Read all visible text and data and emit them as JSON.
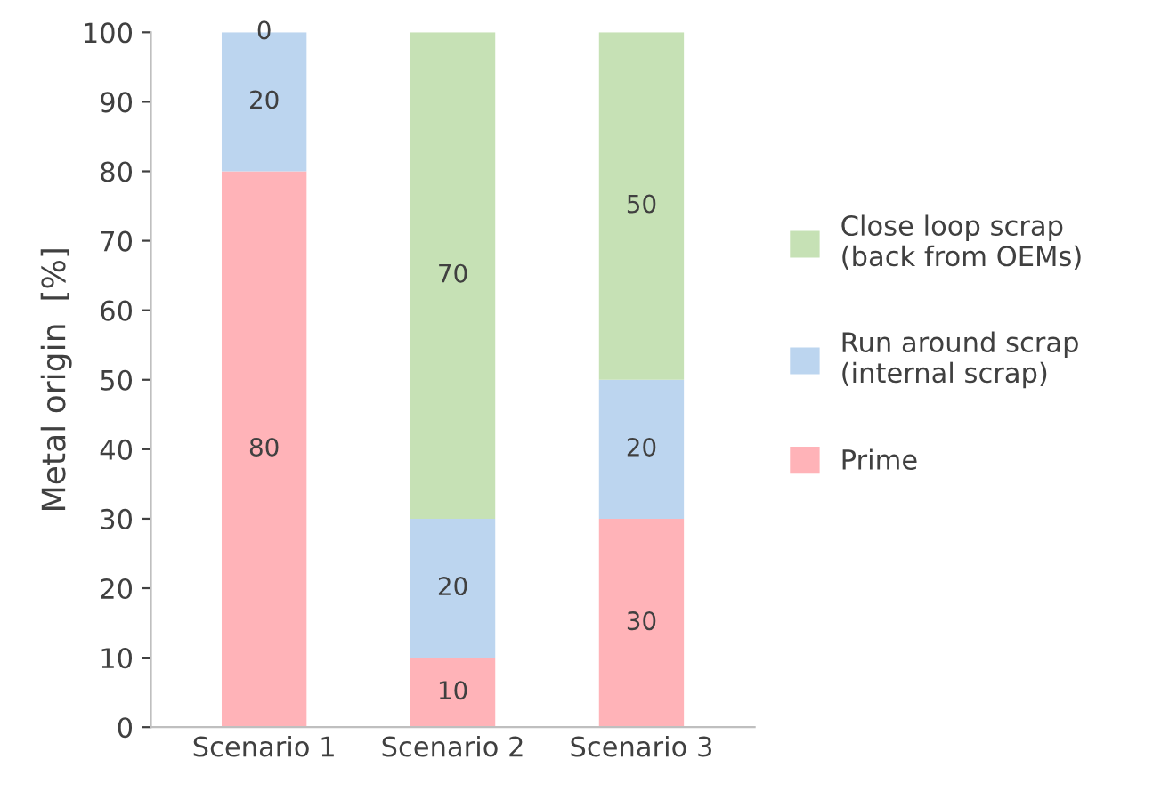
{
  "chart_data": {
    "type": "bar",
    "stacked": true,
    "ylabel": "Metal origin  [%]",
    "categories": [
      "Scenario 1",
      "Scenario 2",
      "Scenario 3"
    ],
    "series": [
      {
        "name": "Prime",
        "color": "#ffb3b8",
        "values": [
          80,
          10,
          30
        ]
      },
      {
        "name": "Run around scrap\n(internal scrap)",
        "color": "#bcd5ef",
        "values": [
          20,
          20,
          20
        ]
      },
      {
        "name": "Close loop scrap\n(back from OEMs)",
        "color": "#c6e1b5",
        "values": [
          0,
          70,
          50
        ]
      }
    ],
    "ylim": [
      0,
      100
    ],
    "yticks": [
      0,
      10,
      20,
      30,
      40,
      50,
      60,
      70,
      80,
      90,
      100
    ],
    "data_labels": true,
    "legend": "right",
    "grid": false
  }
}
